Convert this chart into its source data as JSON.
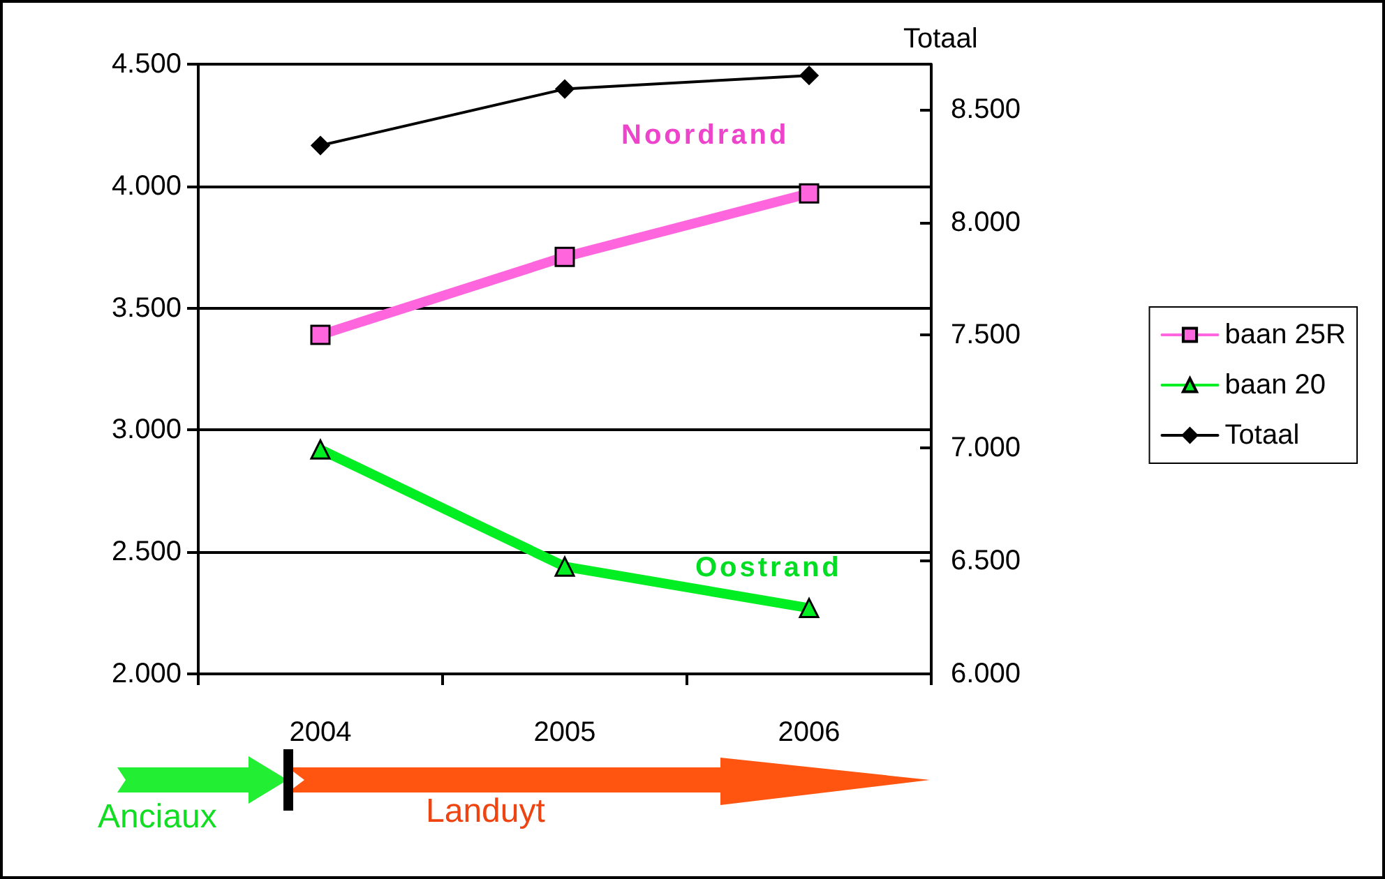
{
  "chart_data": {
    "type": "line",
    "categories": [
      "2004",
      "2005",
      "2006"
    ],
    "series": [
      {
        "name": "baan 25R",
        "color": "#ff66dd",
        "marker": "square",
        "values": [
          3390,
          3710,
          3970
        ]
      },
      {
        "name": "baan 20",
        "color": "#00ee22",
        "marker": "triangle",
        "values": [
          2920,
          2440,
          2270
        ]
      },
      {
        "name": "Totaal",
        "color": "#000000",
        "marker": "diamond",
        "axis": "y2",
        "values": [
          8340,
          8590,
          8650
        ]
      }
    ],
    "ylim": [
      2000,
      4500
    ],
    "yticks": [
      {
        "value": 2000,
        "label": "2.000"
      },
      {
        "value": 2500,
        "label": "2.500"
      },
      {
        "value": 3000,
        "label": "3.000"
      },
      {
        "value": 3500,
        "label": "3.500"
      },
      {
        "value": 4000,
        "label": "4.000"
      },
      {
        "value": 4500,
        "label": "4.500"
      }
    ],
    "y2lim": [
      6000,
      8700
    ],
    "y2ticks": [
      {
        "value": 6000,
        "label": "6.000"
      },
      {
        "value": 6500,
        "label": "6.500"
      },
      {
        "value": 7000,
        "label": "7.000"
      },
      {
        "value": 7500,
        "label": "7.500"
      },
      {
        "value": 8000,
        "label": "8.000"
      },
      {
        "value": 8500,
        "label": "8.500"
      }
    ],
    "y2label": "Totaal",
    "grid": "y",
    "legend": "right",
    "annotations": [
      "Noordrand",
      "Oostrand",
      "Anciaux",
      "Landuyt"
    ]
  }
}
